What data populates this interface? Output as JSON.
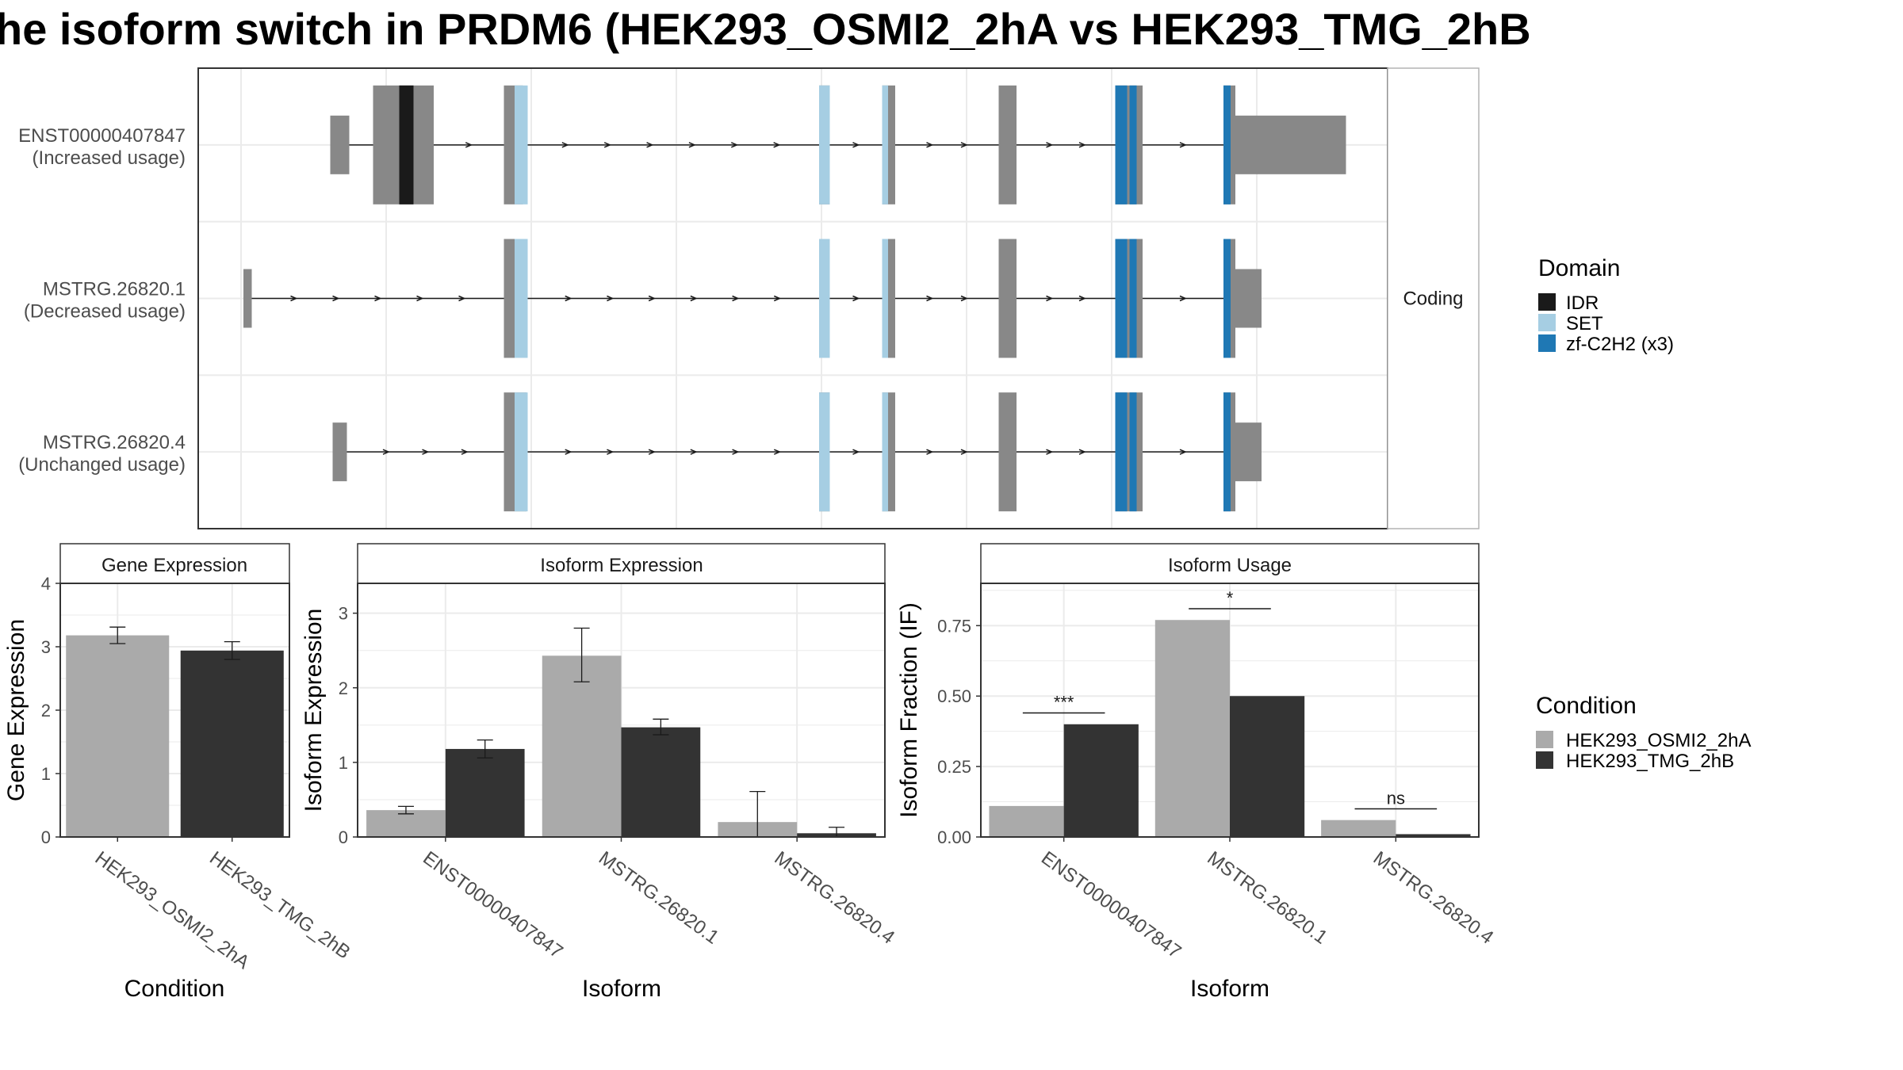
{
  "title": "he isoform switch in PRDM6 (HEK293_OSMI2_2hA vs HEK293_TMG_2hB",
  "transcripts": {
    "facet_label": "Coding",
    "genomic_range": [
      0,
      100
    ],
    "rows": [
      {
        "name": "ENST00000407847",
        "usage": "(Increased usage)",
        "exons": [
          {
            "start": 11.1,
            "end": 12.7,
            "type": "utr"
          },
          {
            "start": 14.7,
            "end": 19.8,
            "type": "cds"
          },
          {
            "start": 25.7,
            "end": 27.3,
            "type": "cds"
          },
          {
            "start": 52.2,
            "end": 53.1,
            "type": "cds"
          },
          {
            "start": 57.5,
            "end": 58.6,
            "type": "cds"
          },
          {
            "start": 67.3,
            "end": 68.8,
            "type": "cds"
          },
          {
            "start": 77.1,
            "end": 79.4,
            "type": "cds"
          },
          {
            "start": 86.2,
            "end": 87.2,
            "type": "cds"
          },
          {
            "start": 87.2,
            "end": 96.5,
            "type": "utr"
          }
        ],
        "domains": [
          {
            "start": 16.9,
            "end": 18.1,
            "domain": "IDR"
          },
          {
            "start": 26.6,
            "end": 27.7,
            "domain": "SET"
          },
          {
            "start": 52.2,
            "end": 53.1,
            "domain": "SET"
          },
          {
            "start": 57.5,
            "end": 58.0,
            "domain": "SET"
          },
          {
            "start": 77.1,
            "end": 78.1,
            "domain": "zf-C2H2 (x3)"
          },
          {
            "start": 78.3,
            "end": 78.9,
            "domain": "zf-C2H2 (x3)"
          },
          {
            "start": 86.2,
            "end": 86.8,
            "domain": "zf-C2H2 (x3)"
          }
        ]
      },
      {
        "name": "MSTRG.26820.1",
        "usage": "(Decreased usage)",
        "exons": [
          {
            "start": 3.8,
            "end": 4.5,
            "type": "utr"
          },
          {
            "start": 25.7,
            "end": 27.6,
            "type": "cds"
          },
          {
            "start": 52.2,
            "end": 53.1,
            "type": "cds"
          },
          {
            "start": 57.5,
            "end": 58.6,
            "type": "cds"
          },
          {
            "start": 67.3,
            "end": 68.8,
            "type": "cds"
          },
          {
            "start": 77.1,
            "end": 79.4,
            "type": "cds"
          },
          {
            "start": 86.2,
            "end": 87.2,
            "type": "cds"
          },
          {
            "start": 87.2,
            "end": 89.4,
            "type": "utr"
          }
        ],
        "domains": [
          {
            "start": 26.6,
            "end": 27.7,
            "domain": "SET"
          },
          {
            "start": 52.2,
            "end": 53.1,
            "domain": "SET"
          },
          {
            "start": 57.5,
            "end": 58.0,
            "domain": "SET"
          },
          {
            "start": 77.1,
            "end": 78.1,
            "domain": "zf-C2H2 (x3)"
          },
          {
            "start": 78.3,
            "end": 78.9,
            "domain": "zf-C2H2 (x3)"
          },
          {
            "start": 86.2,
            "end": 86.8,
            "domain": "zf-C2H2 (x3)"
          }
        ]
      },
      {
        "name": "MSTRG.26820.4",
        "usage": "(Unchanged usage)",
        "exons": [
          {
            "start": 11.3,
            "end": 12.5,
            "type": "utr"
          },
          {
            "start": 25.7,
            "end": 27.6,
            "type": "cds"
          },
          {
            "start": 52.2,
            "end": 53.1,
            "type": "cds"
          },
          {
            "start": 57.5,
            "end": 58.6,
            "type": "cds"
          },
          {
            "start": 67.3,
            "end": 68.8,
            "type": "cds"
          },
          {
            "start": 77.1,
            "end": 79.4,
            "type": "cds"
          },
          {
            "start": 86.2,
            "end": 87.2,
            "type": "cds"
          },
          {
            "start": 87.2,
            "end": 89.4,
            "type": "utr"
          }
        ],
        "domains": [
          {
            "start": 26.6,
            "end": 27.7,
            "domain": "SET"
          },
          {
            "start": 52.2,
            "end": 53.1,
            "domain": "SET"
          },
          {
            "start": 57.5,
            "end": 58.0,
            "domain": "SET"
          },
          {
            "start": 77.1,
            "end": 78.1,
            "domain": "zf-C2H2 (x3)"
          },
          {
            "start": 78.3,
            "end": 78.9,
            "domain": "zf-C2H2 (x3)"
          },
          {
            "start": 86.2,
            "end": 86.8,
            "domain": "zf-C2H2 (x3)"
          }
        ]
      }
    ]
  },
  "legends": {
    "domain": {
      "title": "Domain",
      "items": [
        {
          "label": "IDR",
          "color": "#1a1a1a"
        },
        {
          "label": "SET",
          "color": "#a6cee3"
        },
        {
          "label": "zf-C2H2 (x3)",
          "color": "#1f78b4"
        }
      ]
    },
    "condition": {
      "title": "Condition",
      "items": [
        {
          "label": "HEK293_OSMI2_2hA",
          "color": "#aaaaaa"
        },
        {
          "label": "HEK293_TMG_2hB",
          "color": "#333333"
        }
      ]
    }
  },
  "colors": {
    "exon": "#888888",
    "ref_a": "#aaaaaa",
    "ref_b": "#333333"
  },
  "chart_data": [
    {
      "type": "bar",
      "panel": "Gene Expression",
      "xlabel": "Condition",
      "ylabel": "Gene Expression",
      "ylim": [
        0,
        4
      ],
      "yticks": [
        0,
        1,
        2,
        3,
        4
      ],
      "categories": [
        "HEK293_OSMI2_2hA",
        "HEK293_TMG_2hB"
      ],
      "values": [
        3.18,
        2.94
      ],
      "error": [
        [
          3.05,
          3.31
        ],
        [
          2.8,
          3.08
        ]
      ]
    },
    {
      "type": "bar",
      "panel": "Isoform Expression",
      "xlabel": "Isoform",
      "ylabel": "Isoform Expression",
      "ylim": [
        0,
        3.4
      ],
      "yticks": [
        0,
        1,
        2,
        3
      ],
      "categories": [
        "ENST00000407847",
        "MSTRG.26820.1",
        "MSTRG.26820.4"
      ],
      "series": [
        {
          "name": "HEK293_OSMI2_2hA",
          "values": [
            0.36,
            2.43,
            0.2
          ],
          "error": [
            [
              0.31,
              0.41
            ],
            [
              2.08,
              2.8
            ],
            [
              0.0,
              0.61
            ]
          ]
        },
        {
          "name": "HEK293_TMG_2hB",
          "values": [
            1.18,
            1.47,
            0.05
          ],
          "error": [
            [
              1.06,
              1.3
            ],
            [
              1.37,
              1.58
            ],
            [
              0.0,
              0.13
            ]
          ]
        }
      ]
    },
    {
      "type": "bar",
      "panel": "Isoform Usage",
      "xlabel": "Isoform",
      "ylabel": "Isoform Fraction (IF)",
      "ylim": [
        0,
        0.9
      ],
      "yticks": [
        0.0,
        0.25,
        0.5,
        0.75
      ],
      "ytick_labels": [
        "0.00",
        "0.25",
        "0.50",
        "0.75"
      ],
      "categories": [
        "ENST00000407847",
        "MSTRG.26820.1",
        "MSTRG.26820.4"
      ],
      "series": [
        {
          "name": "HEK293_OSMI2_2hA",
          "values": [
            0.11,
            0.77,
            0.06
          ]
        },
        {
          "name": "HEK293_TMG_2hB",
          "values": [
            0.4,
            0.5,
            0.01
          ]
        }
      ],
      "significance": [
        {
          "category": "ENST00000407847",
          "label": "***",
          "y": 0.44
        },
        {
          "category": "MSTRG.26820.1",
          "label": "*",
          "y": 0.81
        },
        {
          "category": "MSTRG.26820.4",
          "label": "ns",
          "y": 0.1
        }
      ]
    }
  ]
}
